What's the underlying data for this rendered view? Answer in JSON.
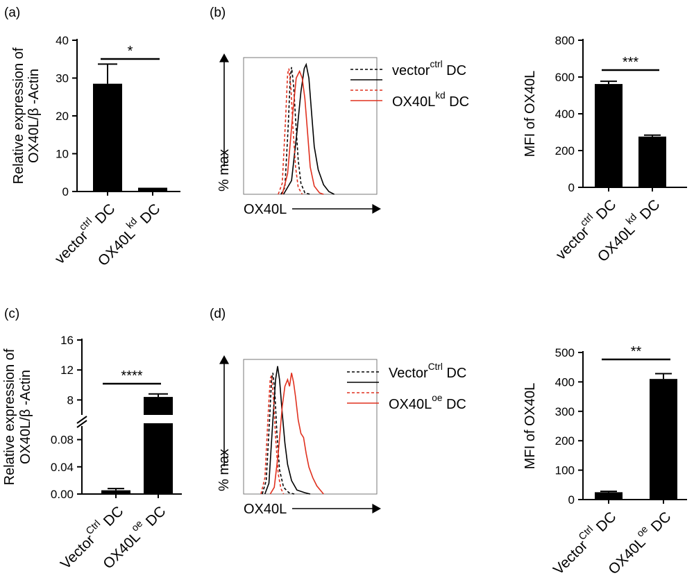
{
  "panel_labels": [
    "(a)",
    "(b)",
    "(c)",
    "(d)"
  ],
  "chart_data": [
    {
      "panel": "(a)",
      "type": "bar",
      "ylabel_line1": "Relative expression of",
      "ylabel_line2": "OX40L/β -Actin",
      "ylim": [
        0,
        40
      ],
      "yticks": [
        "0",
        "10",
        "20",
        "30",
        "40"
      ],
      "categories": [
        {
          "base": "vector",
          "sup": "ctrl",
          "tail": "DC"
        },
        {
          "base": "OX40L",
          "sup": "kd",
          "tail": "DC"
        }
      ],
      "values": [
        28.5,
        1.0
      ],
      "errors": [
        5.2,
        0
      ],
      "significance": "*"
    },
    {
      "panel": "(b)",
      "type": "histogram-overlay",
      "ylabel": "% max",
      "xlabel": "OX40L",
      "legend": [
        {
          "base": "vector",
          "sup": "ctrl",
          "tail": "DC",
          "color": "#000000",
          "style": "dashed"
        },
        {
          "base": "",
          "sup": "",
          "tail": "",
          "color": "#000000",
          "style": "solid"
        },
        {
          "base": "",
          "sup": "",
          "tail": "",
          "color": "#e0301e",
          "style": "dashed"
        },
        {
          "base": "OX40L",
          "sup": "kd",
          "tail": "DC",
          "color": "#e0301e",
          "style": "solid"
        }
      ],
      "curves": [
        {
          "color": "#000000",
          "style": "dashed",
          "points": [
            [
              0.28,
              0
            ],
            [
              0.31,
              0.05
            ],
            [
              0.335,
              0.5
            ],
            [
              0.35,
              0.85
            ],
            [
              0.36,
              0.93
            ],
            [
              0.375,
              0.8
            ],
            [
              0.39,
              0.55
            ],
            [
              0.41,
              0.25
            ],
            [
              0.43,
              0.08
            ],
            [
              0.46,
              0.01
            ],
            [
              0.5,
              0
            ]
          ]
        },
        {
          "color": "#000000",
          "style": "solid",
          "points": [
            [
              0.3,
              0
            ],
            [
              0.36,
              0.1
            ],
            [
              0.4,
              0.45
            ],
            [
              0.43,
              0.75
            ],
            [
              0.455,
              0.92
            ],
            [
              0.47,
              0.95
            ],
            [
              0.49,
              0.85
            ],
            [
              0.51,
              0.6
            ],
            [
              0.53,
              0.35
            ],
            [
              0.56,
              0.18
            ],
            [
              0.6,
              0.07
            ],
            [
              0.64,
              0.02
            ],
            [
              0.68,
              0
            ]
          ]
        },
        {
          "color": "#e0301e",
          "style": "dashed",
          "points": [
            [
              0.26,
              0
            ],
            [
              0.29,
              0.08
            ],
            [
              0.315,
              0.55
            ],
            [
              0.33,
              0.88
            ],
            [
              0.34,
              0.92
            ],
            [
              0.355,
              0.78
            ],
            [
              0.37,
              0.5
            ],
            [
              0.39,
              0.2
            ],
            [
              0.41,
              0.05
            ],
            [
              0.44,
              0
            ]
          ]
        },
        {
          "color": "#e0301e",
          "style": "solid",
          "points": [
            [
              0.29,
              0
            ],
            [
              0.33,
              0.15
            ],
            [
              0.37,
              0.6
            ],
            [
              0.395,
              0.85
            ],
            [
              0.42,
              0.9
            ],
            [
              0.44,
              0.85
            ],
            [
              0.46,
              0.7
            ],
            [
              0.48,
              0.45
            ],
            [
              0.5,
              0.2
            ],
            [
              0.53,
              0.06
            ],
            [
              0.57,
              0.01
            ],
            [
              0.6,
              0
            ]
          ]
        }
      ]
    },
    {
      "panel": "(b)",
      "type": "bar",
      "ylabel": "MFI of OX40L",
      "ylim": [
        0,
        800
      ],
      "yticks": [
        "0",
        "200",
        "400",
        "600",
        "800"
      ],
      "categories": [
        {
          "base": "vector",
          "sup": "ctrl",
          "tail": "DC"
        },
        {
          "base": "OX40L",
          "sup": "kd",
          "tail": "DC"
        }
      ],
      "values": [
        562,
        276
      ],
      "errors": [
        15,
        8
      ],
      "significance": "***"
    },
    {
      "panel": "(c)",
      "type": "bar",
      "ylabel_line1": "Relative expression of",
      "ylabel_line2": "OX40L/β -Actin",
      "broken_axis": true,
      "lower_segment": {
        "ylim": [
          0,
          0.1
        ],
        "yticks": [
          "0.00",
          "0.04",
          "0.08"
        ]
      },
      "upper_segment": {
        "ylim": [
          6,
          16
        ],
        "yticks": [
          "8",
          "12",
          "16"
        ]
      },
      "categories": [
        {
          "base": "Vector",
          "sup": "Ctrl",
          "tail": "DC"
        },
        {
          "base": "OX40L",
          "sup": "oe",
          "tail": "DC"
        }
      ],
      "values": [
        0.0055,
        8.4
      ],
      "errors": [
        0.0025,
        0.4
      ],
      "significance": "****"
    },
    {
      "panel": "(d)",
      "type": "histogram-overlay",
      "ylabel": "% max",
      "xlabel": "OX40L",
      "legend": [
        {
          "base": "Vector",
          "sup": "Ctrl",
          "tail": "DC",
          "color": "#000000",
          "style": "dashed"
        },
        {
          "base": "",
          "sup": "",
          "tail": "",
          "color": "#000000",
          "style": "solid"
        },
        {
          "base": "",
          "sup": "",
          "tail": "",
          "color": "#e0301e",
          "style": "dashed"
        },
        {
          "base": "OX40L",
          "sup": "oe",
          "tail": "DC",
          "color": "#e0301e",
          "style": "solid"
        }
      ],
      "curves": [
        {
          "color": "#000000",
          "style": "dashed",
          "points": [
            [
              0.14,
              0
            ],
            [
              0.17,
              0.1
            ],
            [
              0.195,
              0.55
            ],
            [
              0.21,
              0.85
            ],
            [
              0.22,
              0.9
            ],
            [
              0.235,
              0.75
            ],
            [
              0.25,
              0.45
            ],
            [
              0.27,
              0.18
            ],
            [
              0.3,
              0.05
            ],
            [
              0.34,
              0.01
            ],
            [
              0.38,
              0
            ]
          ]
        },
        {
          "color": "#000000",
          "style": "solid",
          "points": [
            [
              0.16,
              0
            ],
            [
              0.19,
              0.08
            ],
            [
              0.22,
              0.55
            ],
            [
              0.24,
              0.85
            ],
            [
              0.255,
              0.95
            ],
            [
              0.27,
              0.85
            ],
            [
              0.29,
              0.6
            ],
            [
              0.31,
              0.38
            ],
            [
              0.33,
              0.22
            ],
            [
              0.36,
              0.1
            ],
            [
              0.4,
              0.03
            ],
            [
              0.46,
              0.01
            ],
            [
              0.5,
              0
            ]
          ]
        },
        {
          "color": "#e0301e",
          "style": "dashed",
          "points": [
            [
              0.13,
              0
            ],
            [
              0.16,
              0.12
            ],
            [
              0.185,
              0.6
            ],
            [
              0.2,
              0.86
            ],
            [
              0.21,
              0.88
            ],
            [
              0.225,
              0.7
            ],
            [
              0.24,
              0.42
            ],
            [
              0.26,
              0.15
            ],
            [
              0.28,
              0.04
            ],
            [
              0.3,
              0
            ]
          ]
        },
        {
          "color": "#e0301e",
          "style": "solid",
          "points": [
            [
              0.2,
              0
            ],
            [
              0.23,
              0.05
            ],
            [
              0.26,
              0.3
            ],
            [
              0.29,
              0.65
            ],
            [
              0.31,
              0.8
            ],
            [
              0.33,
              0.85
            ],
            [
              0.345,
              0.8
            ],
            [
              0.36,
              0.9
            ],
            [
              0.375,
              0.83
            ],
            [
              0.39,
              0.72
            ],
            [
              0.41,
              0.55
            ],
            [
              0.43,
              0.45
            ],
            [
              0.45,
              0.42
            ],
            [
              0.47,
              0.3
            ],
            [
              0.49,
              0.2
            ],
            [
              0.52,
              0.12
            ],
            [
              0.55,
              0.06
            ],
            [
              0.6,
              0
            ]
          ]
        }
      ]
    },
    {
      "panel": "(d)",
      "type": "bar",
      "ylabel": "MFI of OX40L",
      "ylim": [
        0,
        500
      ],
      "yticks": [
        "0",
        "100",
        "200",
        "300",
        "400",
        "500"
      ],
      "categories": [
        {
          "base": "Vector",
          "sup": "Ctrl",
          "tail": "DC"
        },
        {
          "base": "OX40L",
          "sup": "oe",
          "tail": "DC"
        }
      ],
      "values": [
        25,
        410
      ],
      "errors": [
        3,
        18
      ],
      "significance": "**"
    }
  ]
}
